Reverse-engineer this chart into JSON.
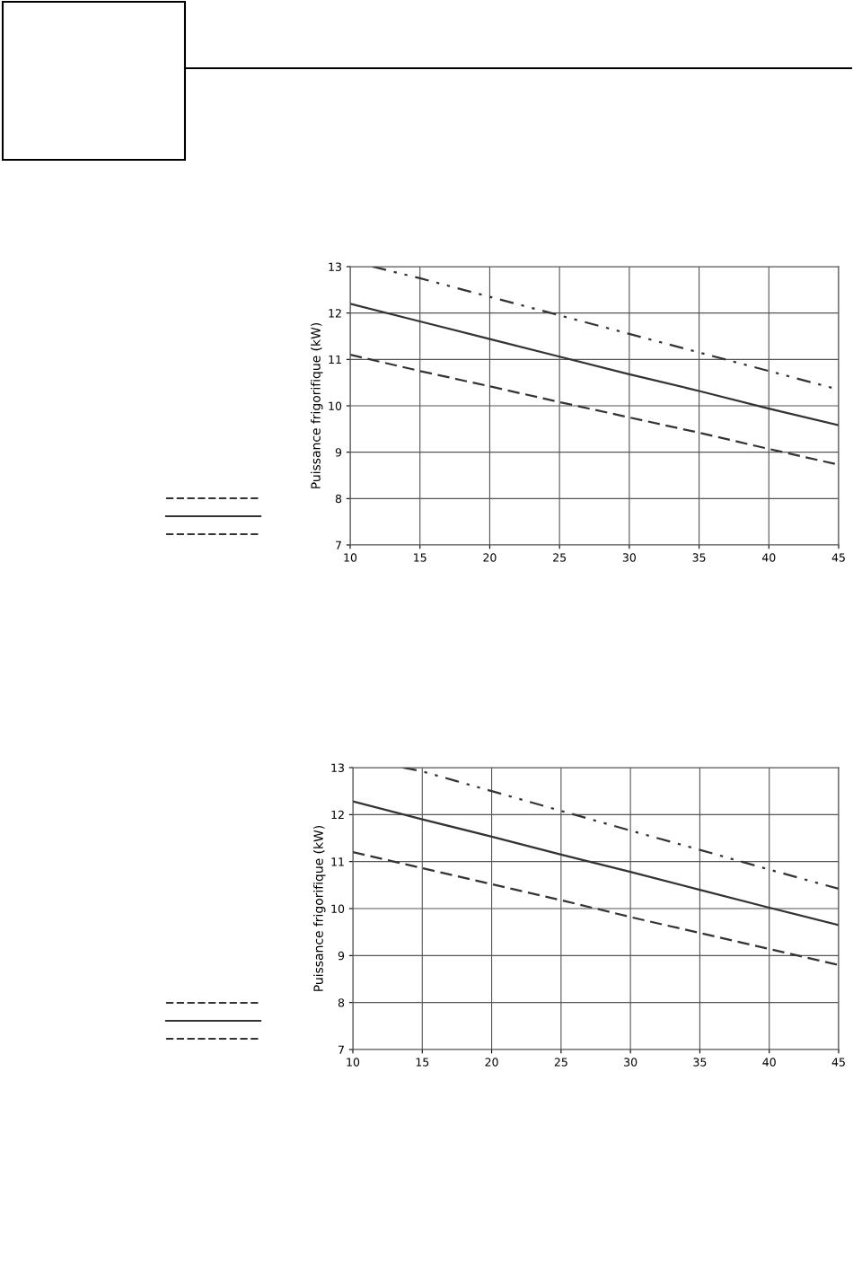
{
  "chart_data": [
    {
      "type": "line",
      "ylabel": "Puissance frigorifique (kW)",
      "xlim": [
        10,
        45
      ],
      "ylim": [
        7,
        13
      ],
      "xticks": [
        10,
        15,
        20,
        25,
        30,
        35,
        40,
        45
      ],
      "yticks": [
        7,
        8,
        9,
        10,
        11,
        12,
        13
      ],
      "grid": true,
      "marker": "none",
      "series": [
        {
          "color": "#333333",
          "line_style": "dashdot",
          "x": [
            11.6,
            15,
            20,
            25,
            30,
            35,
            40,
            45
          ],
          "values": [
            13,
            12.75,
            12.35,
            11.95,
            11.55,
            11.15,
            10.75,
            10.35
          ]
        },
        {
          "color": "#333333",
          "line_style": "solid",
          "x": [
            10,
            15,
            20,
            25,
            30,
            35,
            40,
            45
          ],
          "values": [
            12.2,
            11.82,
            11.44,
            11.06,
            10.68,
            10.32,
            9.94,
            9.58
          ]
        },
        {
          "color": "#333333",
          "line_style": "dashed",
          "x": [
            10,
            15,
            20,
            25,
            30,
            35,
            40,
            45
          ],
          "values": [
            11.1,
            10.75,
            10.42,
            10.08,
            9.75,
            9.42,
            9.07,
            8.73
          ]
        }
      ]
    },
    {
      "type": "line",
      "ylabel": "Puissance frigorifique (kW)",
      "xlim": [
        10,
        45
      ],
      "ylim": [
        7,
        13
      ],
      "xticks": [
        10,
        15,
        20,
        25,
        30,
        35,
        40,
        45
      ],
      "yticks": [
        7,
        8,
        9,
        10,
        11,
        12,
        13
      ],
      "grid": true,
      "marker": "none",
      "series": [
        {
          "color": "#333333",
          "line_style": "dashdot",
          "x": [
            13.6,
            15,
            20,
            25,
            30,
            35,
            40,
            45
          ],
          "values": [
            13,
            12.92,
            12.5,
            12.08,
            11.66,
            11.25,
            10.83,
            10.42
          ]
        },
        {
          "color": "#333333",
          "line_style": "solid",
          "x": [
            10,
            15,
            20,
            25,
            30,
            35,
            40,
            45
          ],
          "values": [
            12.28,
            11.9,
            11.53,
            11.15,
            10.78,
            10.4,
            10.02,
            9.65
          ]
        },
        {
          "color": "#333333",
          "line_style": "dashed",
          "x": [
            10,
            15,
            20,
            25,
            30,
            35,
            40,
            45
          ],
          "values": [
            11.2,
            10.86,
            10.52,
            10.18,
            9.82,
            9.48,
            9.14,
            8.8
          ]
        }
      ]
    }
  ]
}
